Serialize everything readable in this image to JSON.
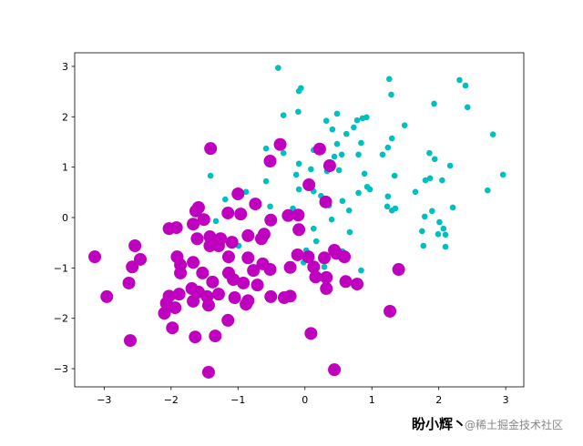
{
  "chart_data": {
    "type": "scatter",
    "xlim": [
      -3.44,
      3.27
    ],
    "ylim": [
      -3.36,
      3.27
    ],
    "xticks": [
      {
        "value": -3,
        "label": "−3"
      },
      {
        "value": -2,
        "label": "−2"
      },
      {
        "value": -1,
        "label": "−1"
      },
      0,
      1,
      2,
      3
    ],
    "yticks": [
      {
        "value": -3,
        "label": "−3"
      },
      {
        "value": -2,
        "label": "−2"
      },
      {
        "value": -1,
        "label": "−1"
      },
      0,
      1,
      2,
      3
    ],
    "grid": false,
    "annotations": [
      "盼小辉丶",
      "@稀土掘金技术社区"
    ],
    "series": [
      {
        "color": "#00bfbf",
        "x": [
          -0.4,
          -0.06,
          -0.09,
          1.26,
          1.29,
          2.31,
          2.4,
          2.43,
          1.93,
          -0.32,
          -0.1,
          0.48,
          0.32,
          0.86,
          0.78,
          0.92,
          0.73,
          0.41,
          0.62,
          1.49,
          1.3,
          2.81,
          -0.58,
          -0.37,
          -0.32,
          0.13,
          0.48,
          0.44,
          0.55,
          0.84,
          0.8,
          1.24,
          1.16,
          1.86,
          1.94,
          2.17,
          -1.41,
          -0.09,
          0.09,
          -0.13,
          0.33,
          0.51,
          0.89,
          1.34,
          2.96,
          1.8,
          1.87,
          2.05,
          -0.58,
          -0.88,
          -0.09,
          0.13,
          0.24,
          0.93,
          0.8,
          0.97,
          1.24,
          1.65,
          2.73,
          -1.19,
          -0.52,
          -0.18,
          0.36,
          0.56,
          0.66,
          1.23,
          1.3,
          1.35,
          1.9,
          2.21,
          -1.33,
          0.13,
          0.4,
          1.79,
          2.01,
          2.07,
          0.67,
          1.75,
          1.99,
          2.1,
          0.17,
          -0.99,
          0.02,
          1.77,
          2.1,
          0.4,
          0.56,
          -0.02,
          0.29,
          0.84
        ],
        "y": [
          2.97,
          2.57,
          2.51,
          2.75,
          2.44,
          2.73,
          2.62,
          2.19,
          2.26,
          2.03,
          2.1,
          2.06,
          1.92,
          1.97,
          1.93,
          1.99,
          1.79,
          1.75,
          1.66,
          1.83,
          1.57,
          1.65,
          1.37,
          1.46,
          1.28,
          1.34,
          1.46,
          1.21,
          1.25,
          1.48,
          1.25,
          1.39,
          1.25,
          1.28,
          1.16,
          1.03,
          0.83,
          1.07,
          0.96,
          0.85,
          0.92,
          0.94,
          0.87,
          0.83,
          0.85,
          0.74,
          0.78,
          0.74,
          0.72,
          0.51,
          0.56,
          0.52,
          0.43,
          0.61,
          0.49,
          0.56,
          0.42,
          0.51,
          0.54,
          0.36,
          0.22,
          0.18,
          0.24,
          0.33,
          0.14,
          0.22,
          0.14,
          0.18,
          0.13,
          0.2,
          -0.07,
          -0.22,
          -0.04,
          0.02,
          -0.09,
          -0.22,
          -0.29,
          -0.27,
          -0.33,
          -0.34,
          -0.47,
          -0.56,
          -0.65,
          -0.56,
          -0.58,
          -0.61,
          -0.67,
          -0.89,
          -0.98,
          -1.05
        ]
      },
      {
        "color": "#bf00bf",
        "x": [
          -1.41,
          -0.37,
          0.22,
          -0.52,
          0.37,
          0.06,
          0.31,
          -1.0,
          -1.59,
          -1.63,
          -1.15,
          -0.96,
          -0.74,
          -0.25,
          -0.1,
          -0.51,
          -2.03,
          -1.92,
          -1.67,
          -1.51,
          -0.09,
          -0.61,
          -2.54,
          -3.14,
          -2.46,
          -2.58,
          -1.61,
          -1.42,
          -1.26,
          -1.09,
          -0.85,
          -0.65,
          -1.42,
          -1.29,
          -1.91,
          -1.86,
          -1.67,
          -1.14,
          -0.85,
          -0.11,
          0.05,
          0.29,
          0.47,
          0.59,
          0.44,
          -0.63,
          -0.52,
          -0.22,
          0.13,
          -1.86,
          -1.53,
          -1.14,
          -0.77,
          1.4,
          0.16,
          0.32,
          -2.63,
          -1.07,
          -0.92,
          -0.71,
          -1.38,
          -1.69,
          -1.59,
          0.61,
          0.78,
          0.32,
          -2.96,
          -2.03,
          -1.88,
          -1.46,
          -1.29,
          -1.05,
          -0.85,
          -0.51,
          -0.31,
          -0.22,
          -2.07,
          -1.94,
          -1.67,
          -1.44,
          -0.88,
          -2.1,
          1.27,
          -1.15,
          -1.98,
          0.09,
          -2.61,
          -1.64,
          -1.34,
          -1.44,
          0.44
        ],
        "y": [
          1.37,
          1.45,
          1.36,
          1.12,
          1.03,
          0.65,
          0.31,
          0.47,
          0.2,
          0.13,
          0.09,
          0.07,
          0.27,
          0.04,
          0.05,
          -0.05,
          -0.22,
          -0.2,
          -0.13,
          -0.04,
          -0.24,
          -0.33,
          -0.56,
          -0.78,
          -0.83,
          -0.98,
          -0.42,
          -0.38,
          -0.42,
          -0.49,
          -0.36,
          -0.42,
          -0.56,
          -0.56,
          -0.78,
          -0.94,
          -0.89,
          -0.78,
          -0.8,
          -0.74,
          -0.78,
          -0.8,
          -0.71,
          -0.78,
          -0.65,
          -0.92,
          -1.03,
          -0.99,
          -0.98,
          -1.1,
          -1.1,
          -1.1,
          -1.05,
          -1.03,
          -1.18,
          -1.19,
          -1.3,
          -1.23,
          -1.3,
          -1.34,
          -1.28,
          -1.41,
          -1.48,
          -1.27,
          -1.32,
          -1.41,
          -1.57,
          -1.56,
          -1.52,
          -1.57,
          -1.52,
          -1.59,
          -1.65,
          -1.57,
          -1.59,
          -1.56,
          -1.7,
          -1.79,
          -1.66,
          -1.74,
          -1.72,
          -1.9,
          -1.86,
          -2.04,
          -2.19,
          -2.3,
          -2.44,
          -2.37,
          -2.35,
          -3.07,
          -3.02
        ]
      }
    ]
  }
}
